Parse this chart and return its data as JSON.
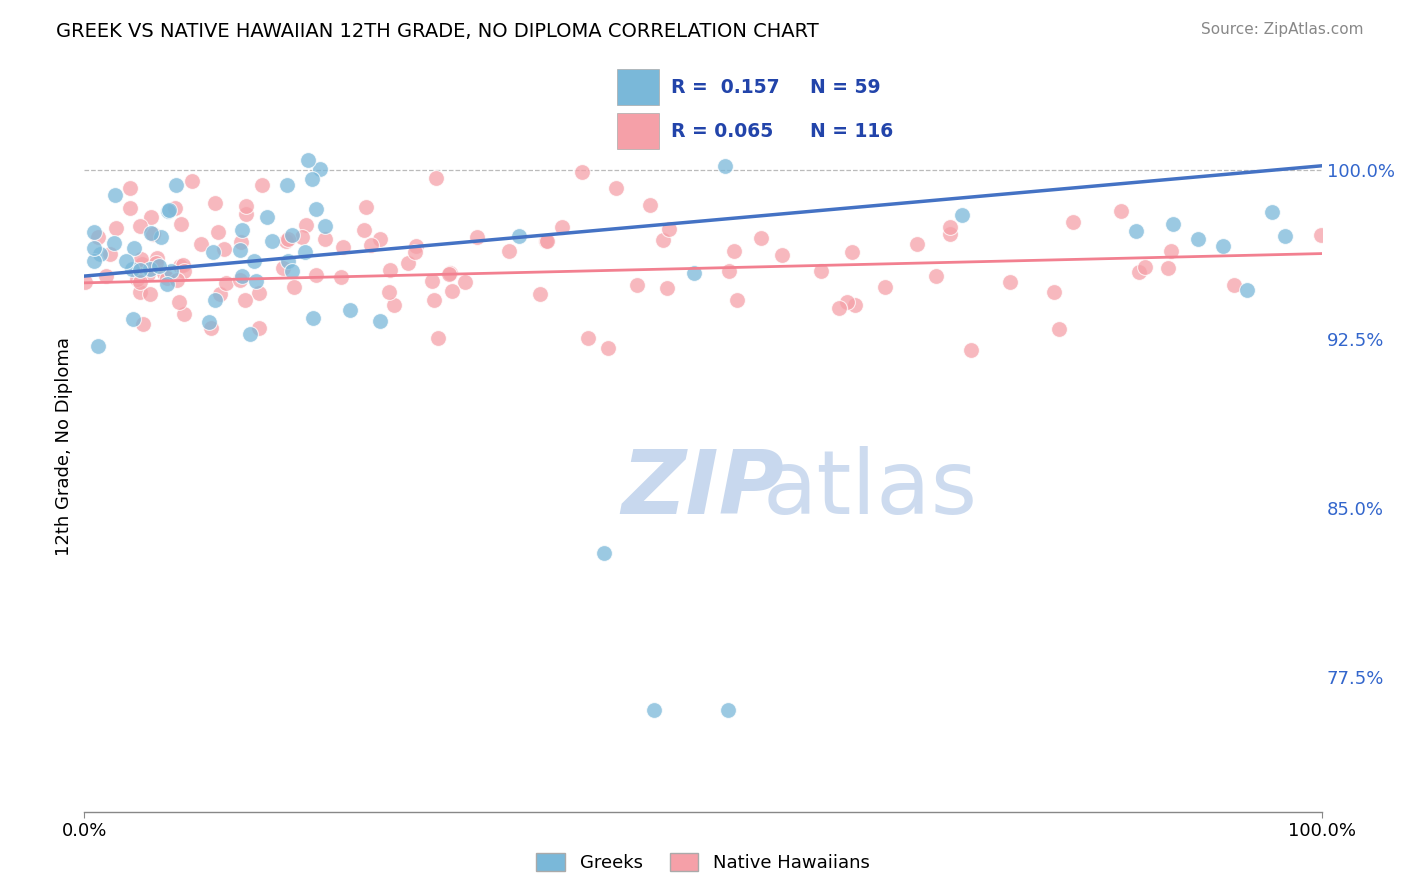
{
  "title": "GREEK VS NATIVE HAWAIIAN 12TH GRADE, NO DIPLOMA CORRELATION CHART",
  "source": "Source: ZipAtlas.com",
  "ylabel": "12th Grade, No Diploma",
  "xmin": 0.0,
  "xmax": 1.0,
  "ymin": 0.715,
  "ymax": 1.04,
  "ytick_values": [
    0.775,
    0.85,
    0.925,
    1.0
  ],
  "ytick_labels": [
    "77.5%",
    "85.0%",
    "92.5%",
    "100.0%"
  ],
  "legend_r_greek": "R =  0.157",
  "legend_n_greek": "N = 59",
  "legend_r_hawaiian": "R = 0.065",
  "legend_n_hawaiian": "N = 116",
  "greek_color": "#7ab8d9",
  "hawaiian_color": "#f5a0a8",
  "greek_line_color": "#4472c4",
  "hawaiian_line_color": "#f28090",
  "legend_text_color": "#2244aa",
  "watermark_color": "#c8d8ee",
  "greek_trend_start": 0.953,
  "greek_trend_end": 1.002,
  "hawaiian_trend_start": 0.95,
  "hawaiian_trend_end": 0.963,
  "dashed_line_y": 1.0
}
